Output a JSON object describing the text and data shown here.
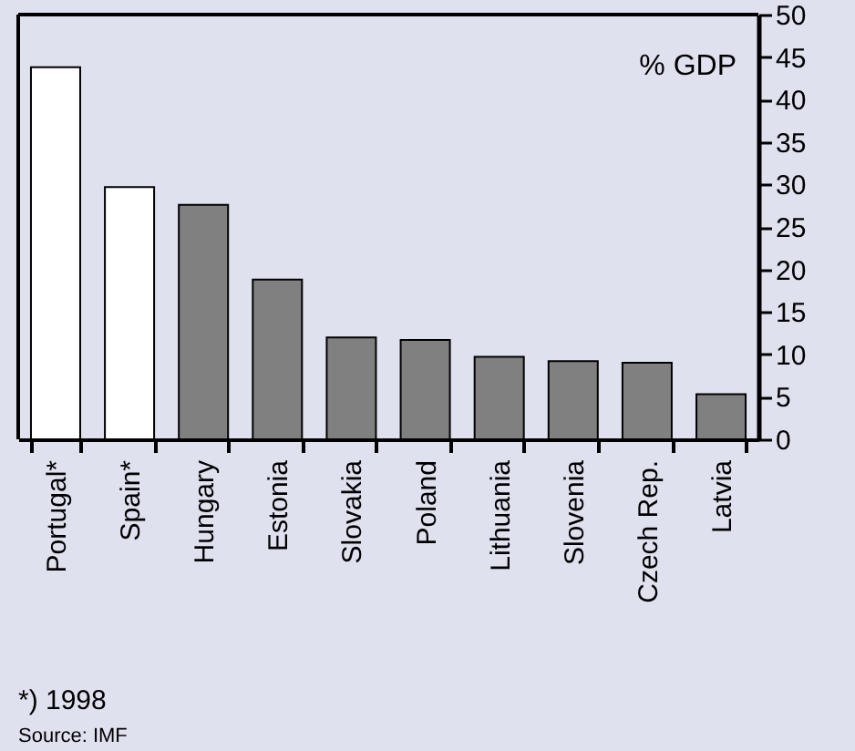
{
  "chart_data": {
    "type": "bar",
    "categories": [
      "Portugal*",
      "Spain*",
      "Hungary",
      "Estonia",
      "Slovakia",
      "Poland",
      "Lithuania",
      "Slovenia",
      "Czech Rep.",
      "Latvia"
    ],
    "values": [
      43.8,
      29.7,
      27.6,
      18.8,
      12.0,
      11.7,
      9.7,
      9.2,
      9.0,
      5.3
    ],
    "colors": [
      "#ffffff",
      "#ffffff",
      "#808080",
      "#808080",
      "#808080",
      "#808080",
      "#808080",
      "#808080",
      "#808080",
      "#808080"
    ],
    "ylim": [
      0,
      50
    ],
    "yticks": [
      0,
      5,
      10,
      15,
      20,
      25,
      30,
      35,
      40,
      45,
      50
    ],
    "annotations": [
      "% GDP",
      "*) 1998",
      "Source: IMF"
    ]
  }
}
